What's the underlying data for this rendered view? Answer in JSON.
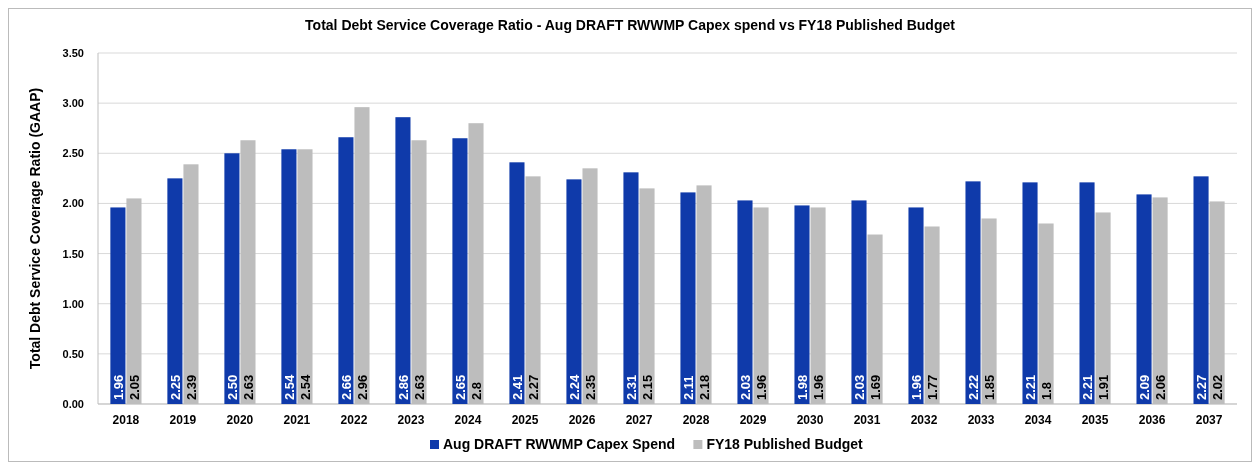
{
  "chart_data": {
    "type": "bar",
    "title": "Total Debt Service Coverage Ratio - Aug DRAFT RWWMP Capex spend vs FY18 Published Budget",
    "ylabel": "Total Debt Service Coverage Ratio (GAAP)",
    "categories": [
      "2018",
      "2019",
      "2020",
      "2021",
      "2022",
      "2023",
      "2024",
      "2025",
      "2026",
      "2027",
      "2028",
      "2029",
      "2030",
      "2031",
      "2032",
      "2033",
      "2034",
      "2035",
      "2036",
      "2037"
    ],
    "series": [
      {
        "name": "Aug DRAFT RWWMP Capex Spend",
        "color": "#0f3aaa",
        "values": [
          1.96,
          2.25,
          2.5,
          2.54,
          2.66,
          2.86,
          2.65,
          2.41,
          2.24,
          2.31,
          2.11,
          2.03,
          1.98,
          2.03,
          1.96,
          2.22,
          2.21,
          2.21,
          2.09,
          2.27
        ],
        "value_labels": [
          "1.96",
          "2.25",
          "2.50",
          "2.54",
          "2.66",
          "2.86",
          "2.65",
          "2.41",
          "2.24",
          "2.31",
          "2.11",
          "2.03",
          "1.98",
          "2.03",
          "1.96",
          "2.22",
          "2.21",
          "2.21",
          "2.09",
          "2.27"
        ]
      },
      {
        "name": "FY18 Published Budget",
        "color": "#bdbdbd",
        "values": [
          2.05,
          2.39,
          2.63,
          2.54,
          2.96,
          2.63,
          2.8,
          2.27,
          2.35,
          2.15,
          2.18,
          1.96,
          1.96,
          1.69,
          1.77,
          1.85,
          1.8,
          1.91,
          2.06,
          2.02
        ],
        "value_labels": [
          "2.05",
          "2.39",
          "2.63",
          "2.54",
          "2.96",
          "2.63",
          "2.8",
          "2.27",
          "2.35",
          "2.15",
          "2.18",
          "1.96",
          "1.96",
          "1.69",
          "1.77",
          "1.85",
          "1.8",
          "1.91",
          "2.06",
          "2.02"
        ]
      }
    ],
    "ylim": [
      0,
      3.5
    ],
    "yticks": [
      "0.00",
      "0.50",
      "1.00",
      "1.50",
      "2.00",
      "2.50",
      "3.00",
      "3.50"
    ],
    "grid": "y",
    "legend": "bottom"
  }
}
